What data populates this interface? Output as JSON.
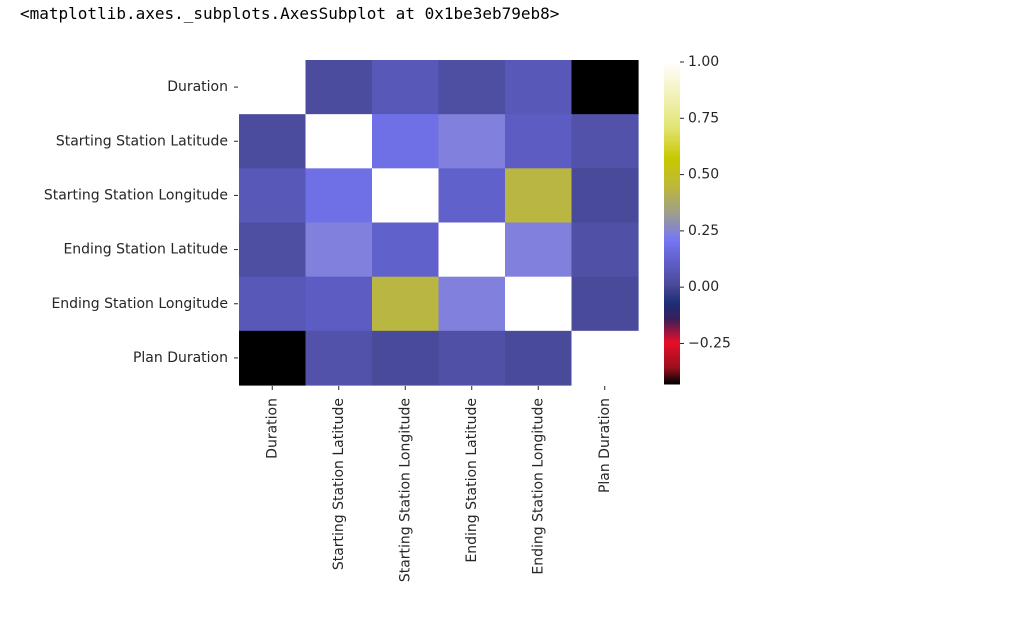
{
  "output_text": "<matplotlib.axes._subplots.AxesSubplot at 0x1be3eb79eb8>",
  "chart_data": {
    "type": "heatmap",
    "title": "",
    "xlabel": "",
    "ylabel": "",
    "rows": [
      "Duration",
      "Starting Station Latitude",
      "Starting Station Longitude",
      "Ending Station Latitude",
      "Ending Station Longitude",
      "Plan Duration"
    ],
    "columns": [
      "Duration",
      "Starting Station Latitude",
      "Starting Station Longitude",
      "Ending Station Latitude",
      "Ending Station Longitude",
      "Plan Duration"
    ],
    "values": [
      [
        null,
        0.02,
        0.08,
        0.03,
        0.08,
        -0.43
      ],
      [
        0.02,
        1.0,
        0.18,
        0.24,
        0.1,
        0.05
      ],
      [
        0.08,
        0.18,
        1.0,
        0.12,
        0.44,
        0.01
      ],
      [
        0.03,
        0.24,
        0.12,
        1.0,
        0.24,
        0.04
      ],
      [
        0.08,
        0.1,
        0.44,
        0.24,
        1.0,
        0.01
      ],
      [
        -0.43,
        0.05,
        0.01,
        0.04,
        0.01,
        null
      ]
    ],
    "colorbar": {
      "colormap": "gist_stern-like",
      "vmin": -0.43,
      "vmax": 1.0,
      "ticks": [
        -0.25,
        0.0,
        0.25,
        0.5,
        0.75,
        1.0
      ],
      "tick_labels": [
        "−0.25",
        "0.00",
        "0.25",
        "0.50",
        "0.75",
        "1.00"
      ]
    },
    "colors": {
      "null": "#ffffff",
      "tick_color": "#262626"
    }
  }
}
